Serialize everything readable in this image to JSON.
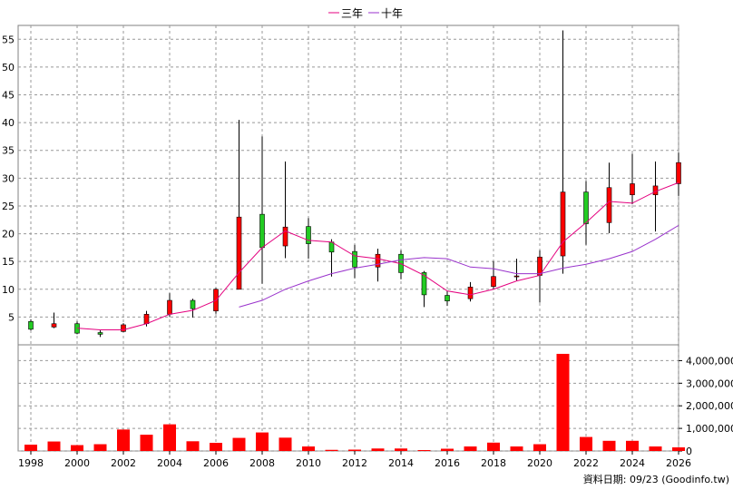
{
  "legend": [
    {
      "label": "三年",
      "color": "#e4007f"
    },
    {
      "label": "十年",
      "color": "#9932cc"
    }
  ],
  "footer": {
    "source": "資料日期: 09/23 (Goodinfo.tw)"
  },
  "chart_data": {
    "type": "candlestick",
    "x_ticks": [
      "1998",
      "2000",
      "2002",
      "2004",
      "2006",
      "2008",
      "2010",
      "2012",
      "2014",
      "2016",
      "2018",
      "2020",
      "2022",
      "2024",
      "2026"
    ],
    "price_axis": {
      "ylim": [
        0,
        57.5
      ],
      "ticks": [
        5,
        10,
        15,
        20,
        25,
        30,
        35,
        40,
        45,
        50,
        55
      ]
    },
    "volume_axis": {
      "ylim": [
        0,
        4700000
      ],
      "ticks": [
        "0",
        "1,000,000",
        "2,000,000",
        "3,000,000",
        "4,000,000"
      ]
    },
    "candles": [
      {
        "year": 1998,
        "open": 4.2,
        "close": 2.8,
        "high": 4.6,
        "low": 2.6
      },
      {
        "year": 1999,
        "open": 3.2,
        "close": 3.8,
        "high": 5.8,
        "low": 3.0
      },
      {
        "year": 2000,
        "open": 3.8,
        "close": 2.1,
        "high": 4.2,
        "low": 1.9
      },
      {
        "year": 2001,
        "open": 2.2,
        "close": 1.9,
        "high": 2.6,
        "low": 1.4
      },
      {
        "year": 2002,
        "open": 2.4,
        "close": 3.6,
        "high": 3.9,
        "low": 2.3
      },
      {
        "year": 2003,
        "open": 3.8,
        "close": 5.5,
        "high": 6.1,
        "low": 3.3
      },
      {
        "year": 2004,
        "open": 5.5,
        "close": 8.0,
        "high": 9.3,
        "low": 5.0
      },
      {
        "year": 2005,
        "open": 8.0,
        "close": 6.5,
        "high": 8.3,
        "low": 4.9
      },
      {
        "year": 2006,
        "open": 6.1,
        "close": 10.0,
        "high": 10.2,
        "low": 5.6
      },
      {
        "year": 2007,
        "open": 10.0,
        "close": 23.0,
        "high": 40.5,
        "low": 10.0
      },
      {
        "year": 2008,
        "open": 23.5,
        "close": 17.5,
        "high": 37.5,
        "low": 11.0
      },
      {
        "year": 2009,
        "open": 17.8,
        "close": 21.2,
        "high": 33.0,
        "low": 15.6
      },
      {
        "year": 2010,
        "open": 21.3,
        "close": 18.2,
        "high": 22.8,
        "low": 15.5
      },
      {
        "year": 2011,
        "open": 18.5,
        "close": 16.7,
        "high": 19.0,
        "low": 12.3
      },
      {
        "year": 2012,
        "open": 16.8,
        "close": 14.0,
        "high": 18.0,
        "low": 12.0
      },
      {
        "year": 2013,
        "open": 14.0,
        "close": 16.3,
        "high": 17.3,
        "low": 11.4
      },
      {
        "year": 2014,
        "open": 16.3,
        "close": 13.0,
        "high": 17.0,
        "low": 11.8
      },
      {
        "year": 2015,
        "open": 13.0,
        "close": 9.0,
        "high": 13.3,
        "low": 6.8
      },
      {
        "year": 2016,
        "open": 8.9,
        "close": 7.9,
        "high": 9.7,
        "low": 7.0
      },
      {
        "year": 2017,
        "open": 8.3,
        "close": 10.4,
        "high": 11.3,
        "low": 7.8
      },
      {
        "year": 2018,
        "open": 10.5,
        "close": 12.3,
        "high": 15.0,
        "low": 10.0
      },
      {
        "year": 2019,
        "open": 12.3,
        "close": 12.4,
        "high": 15.5,
        "low": 11.6
      },
      {
        "year": 2020,
        "open": 12.5,
        "close": 15.8,
        "high": 17.0,
        "low": 7.6
      },
      {
        "year": 2021,
        "open": 16.0,
        "close": 27.5,
        "high": 56.6,
        "low": 12.8
      },
      {
        "year": 2022,
        "open": 27.5,
        "close": 21.8,
        "high": 29.5,
        "low": 18.0
      },
      {
        "year": 2023,
        "open": 22.0,
        "close": 28.3,
        "high": 32.8,
        "low": 20.1
      },
      {
        "year": 2024,
        "open": 27.0,
        "close": 29.0,
        "high": 34.4,
        "low": 25.3
      },
      {
        "year": 2025,
        "open": 27.0,
        "close": 28.6,
        "high": 33.0,
        "low": 20.4
      },
      {
        "year": 2026,
        "open": 29.0,
        "close": 32.8,
        "high": 34.6,
        "low": 26.8
      }
    ],
    "ma_series": [
      {
        "name": "三年",
        "color": "#e4007f",
        "points": [
          [
            2000,
            3.0
          ],
          [
            2001,
            2.7
          ],
          [
            2002,
            2.7
          ],
          [
            2003,
            3.8
          ],
          [
            2004,
            5.5
          ],
          [
            2005,
            6.2
          ],
          [
            2006,
            8.0
          ],
          [
            2007,
            13.0
          ],
          [
            2008,
            17.5
          ],
          [
            2009,
            20.5
          ],
          [
            2010,
            18.8
          ],
          [
            2011,
            18.5
          ],
          [
            2012,
            16.0
          ],
          [
            2013,
            15.5
          ],
          [
            2014,
            14.6
          ],
          [
            2015,
            12.5
          ],
          [
            2016,
            9.7
          ],
          [
            2017,
            9.0
          ],
          [
            2018,
            10.0
          ],
          [
            2019,
            11.5
          ],
          [
            2020,
            12.5
          ],
          [
            2021,
            18.5
          ],
          [
            2022,
            22.0
          ],
          [
            2023,
            25.8
          ],
          [
            2024,
            25.5
          ],
          [
            2025,
            27.6
          ],
          [
            2026,
            29.2
          ]
        ]
      },
      {
        "name": "十年",
        "color": "#9932cc",
        "points": [
          [
            2007,
            6.8
          ],
          [
            2008,
            8.0
          ],
          [
            2009,
            10.0
          ],
          [
            2010,
            11.5
          ],
          [
            2011,
            12.8
          ],
          [
            2012,
            13.8
          ],
          [
            2013,
            14.5
          ],
          [
            2014,
            15.3
          ],
          [
            2015,
            15.7
          ],
          [
            2016,
            15.5
          ],
          [
            2017,
            14.0
          ],
          [
            2018,
            13.7
          ],
          [
            2019,
            12.8
          ],
          [
            2020,
            12.8
          ],
          [
            2021,
            13.8
          ],
          [
            2022,
            14.5
          ],
          [
            2023,
            15.5
          ],
          [
            2024,
            16.8
          ],
          [
            2025,
            19.0
          ],
          [
            2026,
            21.5
          ]
        ]
      }
    ],
    "volume": [
      {
        "year": 1998,
        "value": 280000
      },
      {
        "year": 1999,
        "value": 420000
      },
      {
        "year": 2000,
        "value": 260000
      },
      {
        "year": 2001,
        "value": 300000
      },
      {
        "year": 2002,
        "value": 950000
      },
      {
        "year": 2003,
        "value": 720000
      },
      {
        "year": 2004,
        "value": 1180000
      },
      {
        "year": 2005,
        "value": 430000
      },
      {
        "year": 2006,
        "value": 360000
      },
      {
        "year": 2007,
        "value": 580000
      },
      {
        "year": 2008,
        "value": 820000
      },
      {
        "year": 2009,
        "value": 590000
      },
      {
        "year": 2010,
        "value": 200000
      },
      {
        "year": 2011,
        "value": 50000
      },
      {
        "year": 2012,
        "value": 60000
      },
      {
        "year": 2013,
        "value": 110000
      },
      {
        "year": 2014,
        "value": 110000
      },
      {
        "year": 2015,
        "value": 40000
      },
      {
        "year": 2016,
        "value": 100000
      },
      {
        "year": 2017,
        "value": 200000
      },
      {
        "year": 2018,
        "value": 370000
      },
      {
        "year": 2019,
        "value": 200000
      },
      {
        "year": 2020,
        "value": 300000
      },
      {
        "year": 2021,
        "value": 4300000
      },
      {
        "year": 2022,
        "value": 620000
      },
      {
        "year": 2023,
        "value": 450000
      },
      {
        "year": 2024,
        "value": 450000
      },
      {
        "year": 2025,
        "value": 200000
      },
      {
        "year": 2026,
        "value": 160000
      }
    ],
    "volume_color": "#ff0000",
    "up_color": "#ff0000",
    "down_color": "#22cc22",
    "grid": true,
    "legend_position": "top-center"
  }
}
